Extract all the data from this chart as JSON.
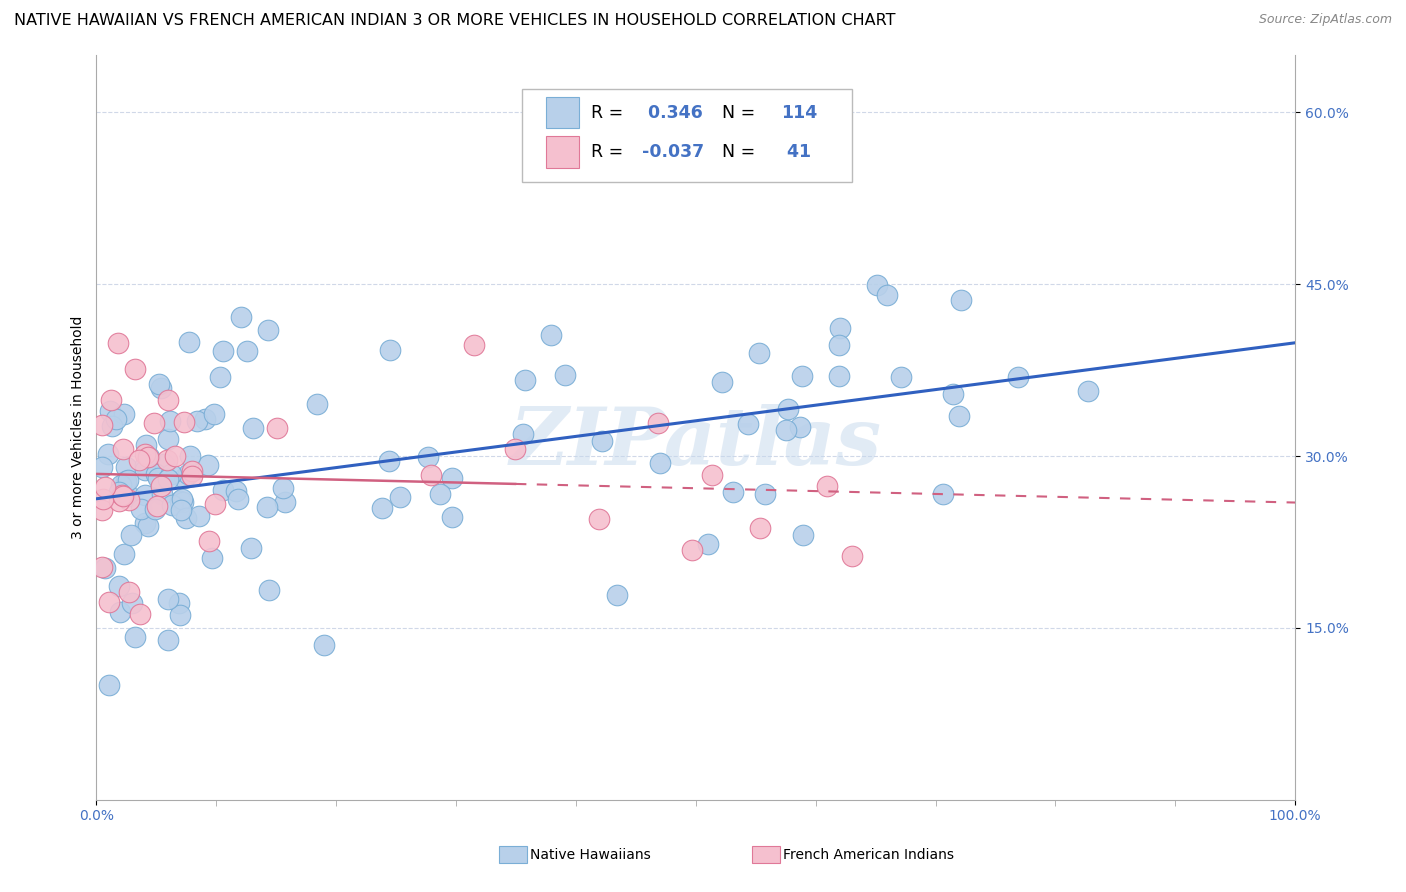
{
  "title": "NATIVE HAWAIIAN VS FRENCH AMERICAN INDIAN 3 OR MORE VEHICLES IN HOUSEHOLD CORRELATION CHART",
  "source": "Source: ZipAtlas.com",
  "ylabel": "3 or more Vehicles in Household",
  "xlim": [
    0.0,
    1.0
  ],
  "ylim": [
    0.0,
    0.65
  ],
  "ytick_vals": [
    0.15,
    0.3,
    0.45,
    0.6
  ],
  "r_blue": 0.346,
  "n_blue": 114,
  "r_pink": -0.037,
  "n_pink": 41,
  "blue_color": "#b8d0ea",
  "blue_edge": "#7aaed6",
  "pink_color": "#f5c0cf",
  "pink_edge": "#e07898",
  "line_blue": "#3060c0",
  "line_pink": "#d06080",
  "watermark": "ZIPatlas",
  "title_fontsize": 11.5,
  "tick_fontsize": 10,
  "tick_color": "#4472c4"
}
